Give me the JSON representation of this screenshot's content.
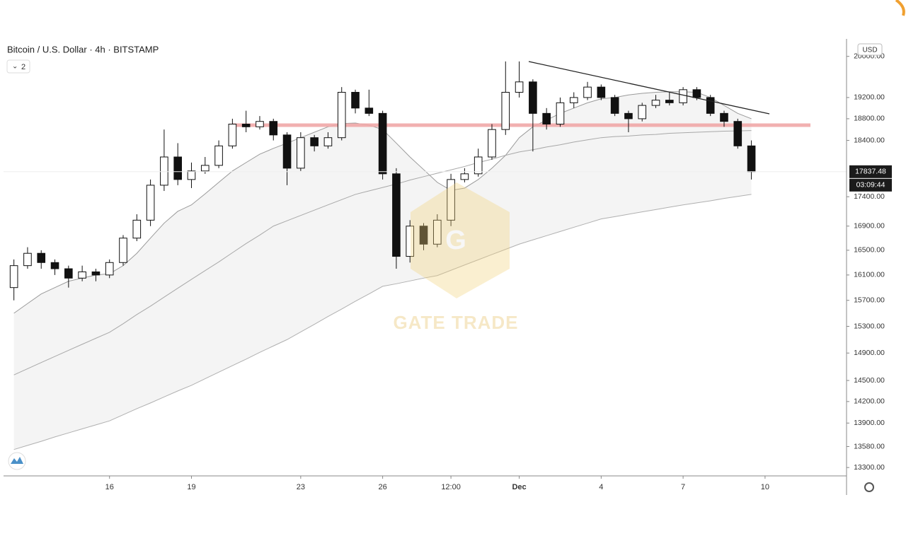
{
  "chart_data": {
    "type": "candlestick",
    "title": "Bitcoin / U.S. Dollar · 4h · BITSTAMP",
    "interval_menu": "2",
    "currency": "USD",
    "countdown": "03:09:44",
    "watermark": "GATE TRADE",
    "categories": [
      null,
      null,
      null,
      null,
      null,
      null,
      null,
      "16",
      null,
      null,
      null,
      null,
      null,
      "19",
      null,
      null,
      null,
      null,
      null,
      null,
      null,
      "23",
      null,
      null,
      null,
      null,
      null,
      "26",
      null,
      null,
      null,
      null,
      "12:00",
      null,
      null,
      null,
      null,
      "Dec",
      null,
      null,
      null,
      null,
      null,
      "4",
      null,
      null,
      null,
      null,
      null,
      "7",
      null,
      null,
      null,
      null,
      null,
      "10",
      null,
      null,
      null,
      null,
      null
    ],
    "open": [
      15900,
      16250,
      16450,
      16300,
      16200,
      16050,
      16150,
      16100,
      16300,
      16700,
      17000,
      17600,
      18100,
      17700,
      17850,
      17950,
      18300,
      18700,
      18650,
      18750,
      18500,
      17900,
      18450,
      18300,
      18450,
      19300,
      19000,
      18900,
      17800,
      16400,
      16900,
      16600,
      17000,
      17700,
      17800,
      18100,
      18600,
      19300,
      19500,
      18900,
      18700,
      19100,
      19200,
      19400,
      19200,
      18900,
      18800,
      19050,
      19150,
      19100,
      19350,
      19200,
      18900,
      18750,
      18300,
      null,
      null,
      null,
      null,
      null,
      null
    ],
    "high": [
      16350,
      16550,
      16500,
      16350,
      16250,
      16250,
      16200,
      16350,
      16750,
      17100,
      17700,
      18600,
      18350,
      18000,
      18100,
      18400,
      18800,
      18950,
      18850,
      18800,
      18550,
      18550,
      18500,
      18550,
      19400,
      19350,
      19350,
      18950,
      17900,
      17000,
      16950,
      17100,
      17800,
      17900,
      18250,
      18700,
      19900,
      19900,
      19550,
      19000,
      19200,
      19300,
      19500,
      19450,
      19250,
      18950,
      19100,
      19250,
      19300,
      19400,
      19400,
      19250,
      18950,
      18800,
      18400,
      null,
      null,
      null,
      null,
      null,
      null
    ],
    "low": [
      15700,
      16200,
      16200,
      16100,
      15900,
      16000,
      16000,
      16050,
      16250,
      16650,
      16900,
      17500,
      17600,
      17550,
      17800,
      17900,
      18250,
      18550,
      18600,
      18400,
      17600,
      17850,
      18200,
      18250,
      18400,
      18900,
      18850,
      17700,
      16200,
      16300,
      16500,
      16550,
      16900,
      17650,
      17750,
      18050,
      18500,
      19200,
      18200,
      18600,
      18650,
      19000,
      19150,
      19150,
      18850,
      18550,
      18750,
      19000,
      19050,
      19050,
      19150,
      18850,
      18650,
      18250,
      17700,
      null,
      null,
      null,
      null,
      null,
      null
    ],
    "close": [
      16250,
      16450,
      16300,
      16200,
      16050,
      16150,
      16100,
      16300,
      16700,
      17000,
      17600,
      18100,
      17700,
      17850,
      17950,
      18300,
      18700,
      18650,
      18750,
      18500,
      17900,
      18450,
      18300,
      18450,
      19300,
      19000,
      18900,
      17800,
      16400,
      16900,
      16600,
      17000,
      17700,
      17800,
      18100,
      18600,
      19300,
      19500,
      18900,
      18700,
      19100,
      19200,
      19400,
      19200,
      18900,
      18800,
      19050,
      19150,
      19100,
      19350,
      19200,
      18900,
      18750,
      18300,
      17837.48,
      null,
      null,
      null,
      null,
      null,
      null
    ],
    "up_color": "#ffffff",
    "down_color": "#111111",
    "overlays": [
      {
        "color": "#9a9a9a",
        "values": [
          15500,
          15650,
          15800,
          15900,
          16000,
          16050,
          16100,
          16120,
          16250,
          16450,
          16700,
          16950,
          17150,
          17260,
          17450,
          17650,
          17850,
          18000,
          18150,
          18255,
          18350,
          18450,
          18550,
          18650,
          18710,
          18720,
          18680,
          18600,
          18350,
          18100,
          17875,
          17650,
          17510,
          17550,
          17700,
          17900,
          18130,
          18450,
          18650,
          18775,
          18900,
          19000,
          19100,
          19175,
          19200,
          19250,
          19280,
          19300,
          19310,
          19310,
          19300,
          19200,
          19050,
          18900,
          18800,
          null,
          null,
          null,
          null,
          null,
          null
        ]
      },
      {
        "color": "#a8a8a8",
        "values": [
          14580,
          14670,
          14760,
          14850,
          14940,
          15030,
          15120,
          15210,
          15340,
          15480,
          15610,
          15750,
          15890,
          16030,
          16170,
          16310,
          16460,
          16610,
          16750,
          16900,
          16990,
          17080,
          17170,
          17260,
          17350,
          17440,
          17500,
          17560,
          17620,
          17690,
          17750,
          17810,
          17870,
          17930,
          18000,
          18060,
          18130,
          18190,
          18230,
          18280,
          18320,
          18370,
          18410,
          18450,
          18470,
          18480,
          18500,
          18510,
          18530,
          18540,
          18550,
          18560,
          18570,
          18575,
          18580,
          null,
          null,
          null,
          null,
          null,
          null
        ]
      },
      {
        "color": "#b0b0b0",
        "values": [
          13540,
          13595,
          13650,
          13710,
          13765,
          13820,
          13875,
          13930,
          14015,
          14100,
          14180,
          14265,
          14350,
          14430,
          14525,
          14620,
          14715,
          14810,
          14910,
          15005,
          15100,
          15215,
          15330,
          15450,
          15565,
          15685,
          15800,
          15920,
          15960,
          16005,
          16050,
          16090,
          16175,
          16260,
          16345,
          16430,
          16515,
          16600,
          16670,
          16740,
          16810,
          16880,
          16950,
          17020,
          17060,
          17100,
          17140,
          17180,
          17220,
          17260,
          17295,
          17330,
          17370,
          17405,
          17440,
          null,
          null,
          null,
          null,
          null,
          null
        ]
      }
    ],
    "band_color": "#f4f4f4",
    "support_level": {
      "value": 18680,
      "color": "#f0a8a8"
    },
    "log_scale": true,
    "ylim": [
      13190,
      20350
    ],
    "yticks": [
      {
        "value": 20000,
        "label": "20000.00"
      },
      {
        "value": 19200,
        "label": "19200.00"
      },
      {
        "value": 18800,
        "label": "18800.00"
      },
      {
        "value": 18400,
        "label": "18400.00"
      },
      {
        "value": 17400,
        "label": "17400.00"
      },
      {
        "value": 16900,
        "label": "16900.00"
      },
      {
        "value": 16500,
        "label": "16500.00"
      },
      {
        "value": 16100,
        "label": "16100.00"
      },
      {
        "value": 15700,
        "label": "15700.00"
      },
      {
        "value": 15300,
        "label": "15300.00"
      },
      {
        "value": 14900,
        "label": "14900.00"
      },
      {
        "value": 14500,
        "label": "14500.00"
      },
      {
        "value": 14200,
        "label": "14200.00"
      },
      {
        "value": 13900,
        "label": "13900.00"
      },
      {
        "value": 13580,
        "label": "13580.00"
      },
      {
        "value": 13300,
        "label": "13300.00"
      }
    ]
  }
}
